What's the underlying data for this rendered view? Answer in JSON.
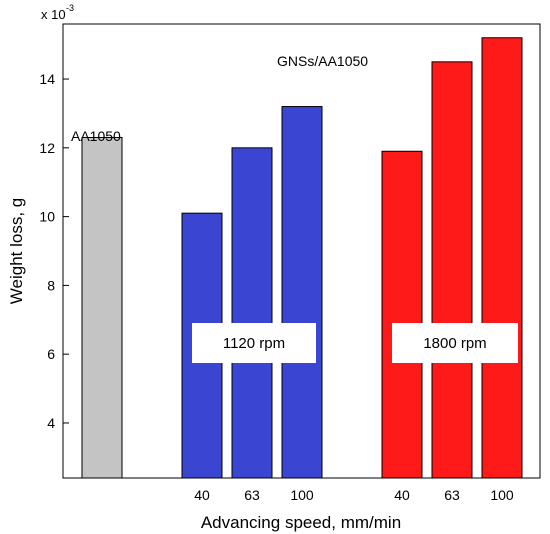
{
  "chart_data": {
    "type": "bar",
    "ylabel": "Weight loss, g",
    "xlabel": "Advancing speed, mm/min",
    "y_multiplier": "x 10",
    "y_exponent": "-3",
    "ylim": [
      2.4,
      15.6
    ],
    "yticks": [
      "4",
      "6",
      "8",
      "10",
      "12",
      "14"
    ],
    "grid": false,
    "bars": [
      {
        "group": "AA1050",
        "category": "",
        "value": 12.3,
        "color": "#c4c4c4"
      },
      {
        "group": "1120 rpm",
        "category": "40",
        "value": 10.1,
        "color": "#3a46d2"
      },
      {
        "group": "1120 rpm",
        "category": "63",
        "value": 12.0,
        "color": "#3a46d2"
      },
      {
        "group": "1120 rpm",
        "category": "100",
        "value": 13.2,
        "color": "#3a46d2"
      },
      {
        "group": "1800 rpm",
        "category": "40",
        "value": 11.9,
        "color": "#ff1a1a"
      },
      {
        "group": "1800 rpm",
        "category": "63",
        "value": 14.5,
        "color": "#ff1a1a"
      },
      {
        "group": "1800 rpm",
        "category": "100",
        "value": 15.2,
        "color": "#ff1a1a"
      }
    ],
    "annotations": {
      "baseline": "AA1050",
      "composite": "GNSs/AA1050",
      "group_1120": "1120 rpm",
      "group_1800": "1800 rpm"
    }
  }
}
